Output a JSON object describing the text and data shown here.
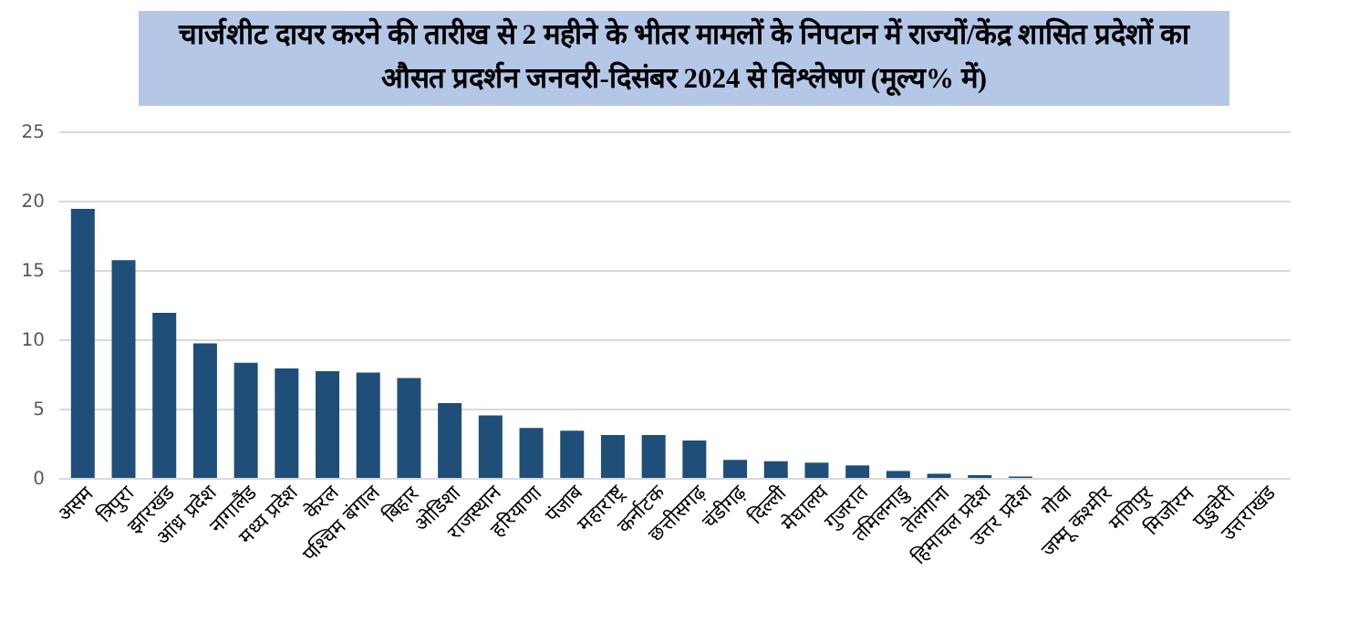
{
  "chart_data": {
    "type": "bar",
    "title": "चार्जशीट दायर करने की तारीख से 2 महीने के भीतर मामलों के निपटान में राज्यों/केंद्र शासित प्रदेशों का औसत प्रदर्शन जनवरी-दिसंबर 2024 से विश्लेषण (मूल्य% में)",
    "categories": [
      "असम",
      "त्रिपुरा",
      "झारखंड",
      "आंध्र प्रदेश",
      "नागालैंड",
      "मध्य प्रदेश",
      "केरल",
      "पश्चिम बंगाल",
      "बिहार",
      "ओडिशा",
      "राजस्थान",
      "हरियाणा",
      "पंजाब",
      "महाराष्ट्र",
      "कर्नाटक",
      "छत्तीसगढ़",
      "चंडीगढ़",
      "दिल्ली",
      "मेघालय",
      "गुजरात",
      "तमिलनाडु",
      "तेलंगाना",
      "हिमाचल प्रदेश",
      "उत्तर प्रदेश",
      "गोवा",
      "जम्मू कश्मीर",
      "मणिपुर",
      "मिजोरम",
      "पुडुचेरी",
      "उत्तराखंड"
    ],
    "values": [
      19.4,
      15.7,
      11.9,
      9.7,
      8.3,
      7.9,
      7.7,
      7.6,
      7.2,
      5.4,
      4.5,
      3.6,
      3.4,
      3.1,
      3.1,
      2.7,
      1.3,
      1.2,
      1.1,
      0.9,
      0.5,
      0.3,
      0.2,
      0.1,
      0,
      0,
      0,
      0,
      0,
      0
    ],
    "color": "#1f4e79",
    "ylim": [
      0,
      25
    ],
    "yticks": [
      0,
      5,
      10,
      15,
      20,
      25
    ],
    "grid": "y"
  }
}
